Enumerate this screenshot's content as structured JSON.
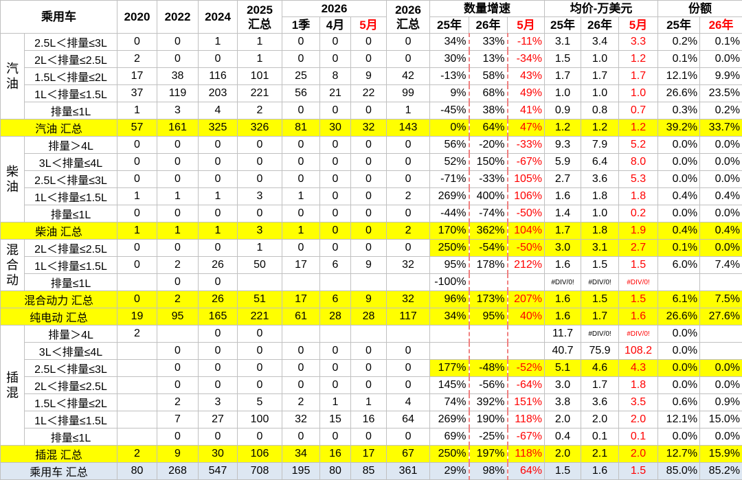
{
  "header": {
    "corner": "乘用车",
    "years": [
      "2020",
      "2022",
      "2024"
    ],
    "total_2025": [
      "2025",
      "汇总"
    ],
    "year_2026": "2026",
    "months_2026": [
      "1季",
      "4月",
      "5月"
    ],
    "total_2026": [
      "2026",
      "汇总"
    ],
    "growth": {
      "title": "数量增速",
      "cols": [
        "25年",
        "26年",
        "5月"
      ]
    },
    "price": {
      "title": "均价-万美元",
      "cols": [
        "25年",
        "26年",
        "5月"
      ]
    },
    "share": {
      "title": "份额",
      "cols": [
        "25年",
        "26年"
      ]
    }
  },
  "body": [
    {
      "group": "汽油",
      "rows": [
        {
          "label": "2.5L＜排量≤3L",
          "cells": [
            0,
            0,
            1,
            1,
            0,
            0,
            0,
            0,
            "34%",
            "33%",
            "-11%",
            "3.1",
            "3.4",
            "3.3",
            "0.2%",
            "0.1%"
          ]
        },
        {
          "label": "2L＜排量≤2.5L",
          "cells": [
            2,
            0,
            0,
            1,
            0,
            0,
            0,
            0,
            "30%",
            "13%",
            "-34%",
            "1.5",
            "1.0",
            "1.2",
            "0.1%",
            "0.0%"
          ]
        },
        {
          "label": "1.5L＜排量≤2L",
          "cells": [
            17,
            38,
            116,
            101,
            25,
            8,
            9,
            42,
            "-13%",
            "58%",
            "43%",
            "1.7",
            "1.7",
            "1.7",
            "12.1%",
            "9.9%"
          ]
        },
        {
          "label": "1L＜排量≤1.5L",
          "cells": [
            37,
            119,
            203,
            221,
            56,
            21,
            22,
            99,
            "9%",
            "68%",
            "49%",
            "1.0",
            "1.0",
            "1.0",
            "26.6%",
            "23.5%"
          ]
        },
        {
          "label": "排量≤1L",
          "cells": [
            1,
            3,
            4,
            2,
            0,
            0,
            0,
            1,
            "-45%",
            "38%",
            "41%",
            "0.9",
            "0.8",
            "0.7",
            "0.3%",
            "0.2%"
          ]
        }
      ]
    },
    {
      "label": "汽油 汇总",
      "fill": "#ffff00",
      "cells": [
        57,
        161,
        325,
        326,
        81,
        30,
        32,
        143,
        "0%",
        "64%",
        "47%",
        "1.2",
        "1.2",
        "1.2",
        "39.2%",
        "33.7%"
      ]
    },
    {
      "group": "柴油",
      "rows": [
        {
          "label": "排量＞4L",
          "cells": [
            0,
            0,
            0,
            0,
            0,
            0,
            0,
            0,
            "56%",
            "-20%",
            "-33%",
            "9.3",
            "7.9",
            "5.2",
            "0.0%",
            "0.0%"
          ]
        },
        {
          "label": "3L＜排量≤4L",
          "cells": [
            0,
            0,
            0,
            0,
            0,
            0,
            0,
            0,
            "52%",
            "150%",
            "-67%",
            "5.9",
            "6.4",
            "8.0",
            "0.0%",
            "0.0%"
          ]
        },
        {
          "label": "2.5L＜排量≤3L",
          "cells": [
            0,
            0,
            0,
            0,
            0,
            0,
            0,
            0,
            "-71%",
            "-33%",
            "105%",
            "2.7",
            "3.6",
            "5.3",
            "0.0%",
            "0.0%"
          ]
        },
        {
          "label": "1L＜排量≤1.5L",
          "cells": [
            1,
            1,
            1,
            3,
            1,
            0,
            0,
            2,
            "269%",
            "400%",
            "106%",
            "1.6",
            "1.8",
            "1.8",
            "0.4%",
            "0.4%"
          ]
        },
        {
          "label": "排量≤1L",
          "cells": [
            0,
            0,
            0,
            0,
            0,
            0,
            0,
            0,
            "-44%",
            "-74%",
            "-50%",
            "1.4",
            "1.0",
            "0.2",
            "0.0%",
            "0.0%"
          ]
        }
      ]
    },
    {
      "label": "柴油 汇总",
      "fill": "#ffff00",
      "cells": [
        1,
        1,
        1,
        3,
        1,
        0,
        0,
        2,
        "170%",
        "362%",
        "104%",
        "1.7",
        "1.8",
        "1.9",
        "0.4%",
        "0.4%"
      ]
    },
    {
      "group": "混合动",
      "rows": [
        {
          "label": "2L＜排量≤2.5L",
          "metric_fill": "#ffff00",
          "cells": [
            0,
            0,
            0,
            1,
            0,
            0,
            0,
            0,
            "250%",
            "-54%",
            "-50%",
            "3.0",
            "3.1",
            "2.7",
            "0.1%",
            "0.0%"
          ]
        },
        {
          "label": "1L＜排量≤1.5L",
          "cells": [
            0,
            2,
            26,
            50,
            17,
            6,
            9,
            32,
            "95%",
            "178%",
            "212%",
            "1.6",
            "1.5",
            "1.5",
            "6.0%",
            "7.4%"
          ]
        },
        {
          "label": "排量≤1L",
          "cells": [
            null,
            0,
            0,
            null,
            null,
            null,
            null,
            null,
            "-100%",
            null,
            null,
            "#DIV/0!",
            "#DIV/0!",
            "#DIV/0!",
            null,
            null
          ]
        }
      ]
    },
    {
      "label": "混合动力 汇总",
      "fill": "#ffff00",
      "cells": [
        0,
        2,
        26,
        51,
        17,
        6,
        9,
        32,
        "96%",
        "173%",
        "207%",
        "1.6",
        "1.5",
        "1.5",
        "6.1%",
        "7.5%"
      ]
    },
    {
      "label": "纯电动 汇总",
      "fill": "#ffff00",
      "cells": [
        19,
        95,
        165,
        221,
        61,
        28,
        28,
        117,
        "34%",
        "95%",
        "40%",
        "1.6",
        "1.7",
        "1.6",
        "26.6%",
        "27.6%"
      ]
    },
    {
      "group": "插混",
      "rows": [
        {
          "label": "排量＞4L",
          "cells": [
            2,
            null,
            0,
            0,
            null,
            null,
            null,
            null,
            null,
            null,
            null,
            "11.7",
            "#DIV/0!",
            "#DIV/0!",
            "0.0%",
            null
          ]
        },
        {
          "label": "3L＜排量≤4L",
          "cells": [
            null,
            0,
            0,
            0,
            0,
            0,
            0,
            0,
            null,
            null,
            null,
            "40.7",
            "75.9",
            "108.2",
            "0.0%",
            null
          ]
        },
        {
          "label": "2.5L＜排量≤3L",
          "metric_fill": "#ffff00",
          "cells": [
            null,
            0,
            0,
            0,
            0,
            0,
            0,
            0,
            "177%",
            "-48%",
            "-52%",
            "5.1",
            "4.6",
            "4.3",
            "0.0%",
            "0.0%"
          ]
        },
        {
          "label": "2L＜排量≤2.5L",
          "cells": [
            null,
            0,
            0,
            0,
            0,
            0,
            0,
            0,
            "145%",
            "-56%",
            "-64%",
            "3.0",
            "1.7",
            "1.8",
            "0.0%",
            "0.0%"
          ]
        },
        {
          "label": "1.5L＜排量≤2L",
          "cells": [
            null,
            2,
            3,
            5,
            2,
            1,
            1,
            4,
            "74%",
            "392%",
            "151%",
            "3.8",
            "3.6",
            "3.5",
            "0.6%",
            "0.9%"
          ]
        },
        {
          "label": "1L＜排量≤1.5L",
          "cells": [
            null,
            7,
            27,
            100,
            32,
            15,
            16,
            64,
            "269%",
            "190%",
            "118%",
            "2.0",
            "2.0",
            "2.0",
            "12.1%",
            "15.0%"
          ]
        },
        {
          "label": "排量≤1L",
          "cells": [
            null,
            0,
            0,
            0,
            0,
            0,
            0,
            0,
            "69%",
            "-25%",
            "-67%",
            "0.4",
            "0.1",
            "0.1",
            "0.0%",
            "0.0%"
          ]
        }
      ]
    },
    {
      "label": "插混 汇总",
      "fill": "#ffff00",
      "cells": [
        2,
        9,
        30,
        106,
        34,
        16,
        17,
        67,
        "250%",
        "197%",
        "118%",
        "2.0",
        "2.1",
        "2.0",
        "12.7%",
        "15.9%"
      ]
    },
    {
      "label": "乘用车 汇总",
      "fill": "#dde7f2",
      "cells": [
        80,
        268,
        547,
        708,
        195,
        80,
        85,
        361,
        "29%",
        "98%",
        "64%",
        "1.5",
        "1.6",
        "1.5",
        "85.0%",
        "85.2%"
      ]
    }
  ]
}
